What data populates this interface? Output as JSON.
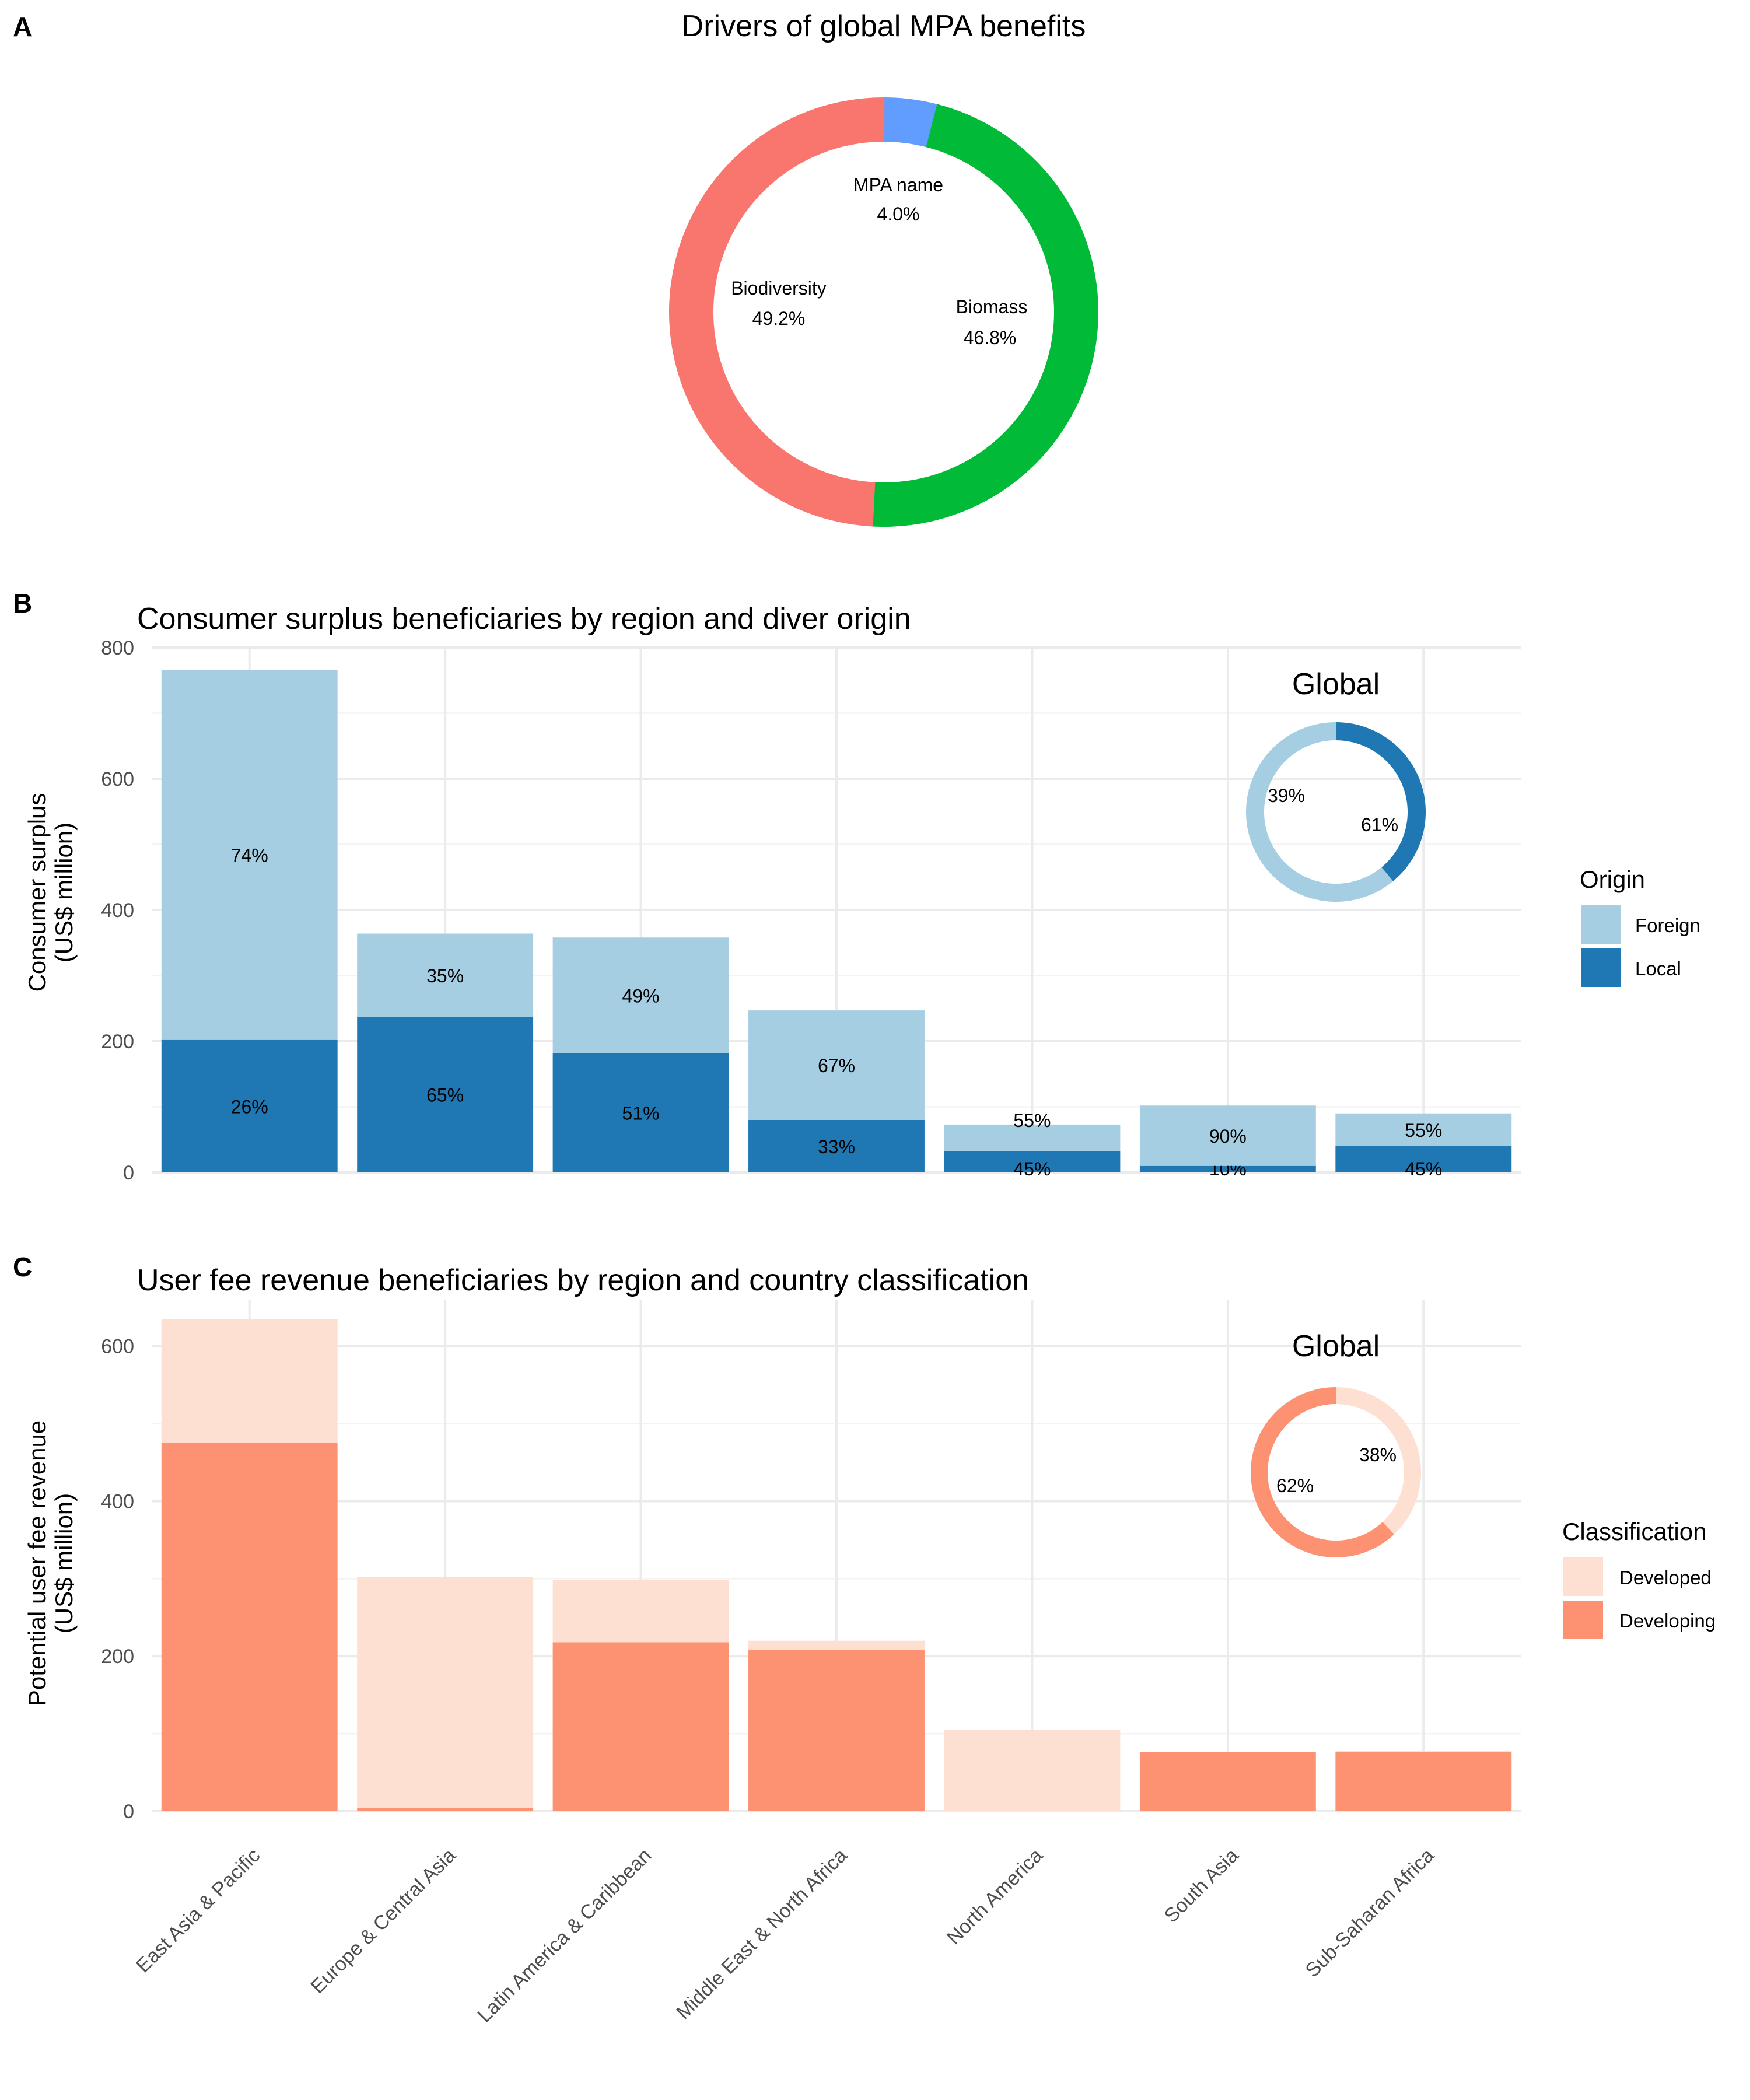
{
  "colors": {
    "mpa": "#619cff",
    "biomass": "#00ba38",
    "biodiversity": "#f8766d",
    "foreign": "#a6cee3",
    "local": "#1f78b4",
    "developed": "#fde0d2",
    "developing": "#fc9272"
  },
  "chart_data": [
    {
      "panel": "A",
      "type": "pie",
      "title": "Drivers of global MPA benefits",
      "slices": [
        {
          "label": "MPA name",
          "value": 4.0,
          "text": "4.0%",
          "color_key": "mpa"
        },
        {
          "label": "Biomass",
          "value": 46.8,
          "text": "46.8%",
          "color_key": "biomass"
        },
        {
          "label": "Biodiversity",
          "value": 49.2,
          "text": "49.2%",
          "color_key": "biodiversity"
        }
      ]
    },
    {
      "panel": "B",
      "type": "bar",
      "stacked": true,
      "title": "Consumer surplus beneficiaries by region and diver origin",
      "ylabel": [
        "Consumer surplus",
        "(US$ million)"
      ],
      "ylim": [
        0,
        800
      ],
      "yticks": [
        0,
        200,
        400,
        600,
        800
      ],
      "categories": [
        "East Asia & Pacific",
        "Europe & Central Asia",
        "Latin America & Caribbean",
        "Middle East & North Africa",
        "North America",
        "South Asia",
        "Sub-Saharan Africa"
      ],
      "series": [
        {
          "name": "Local",
          "color_key": "local",
          "values": [
            202,
            237,
            182,
            80,
            33,
            10,
            40
          ],
          "labels": [
            "26%",
            "65%",
            "51%",
            "33%",
            "45%",
            "10%",
            "45%"
          ]
        },
        {
          "name": "Foreign",
          "color_key": "foreign",
          "values": [
            564,
            127,
            176,
            167,
            40,
            92,
            50
          ],
          "labels": [
            "74%",
            "35%",
            "49%",
            "67%",
            "55%",
            "90%",
            "55%"
          ]
        }
      ],
      "legend": {
        "title": "Origin",
        "items": [
          "Foreign",
          "Local"
        ],
        "placement": "right"
      },
      "inset": {
        "title": "Global",
        "type": "pie",
        "slices": [
          {
            "value": 39,
            "text": "39%",
            "color_key": "local"
          },
          {
            "value": 61,
            "text": "61%",
            "color_key": "foreign"
          }
        ]
      }
    },
    {
      "panel": "C",
      "type": "bar",
      "stacked": true,
      "title": "User fee revenue beneficiaries by region and country classification",
      "ylabel": [
        "Potential user fee revenue",
        "(US$ million)"
      ],
      "ylim": [
        0,
        660
      ],
      "yticks": [
        0,
        200,
        400,
        600
      ],
      "categories": [
        "East Asia & Pacific",
        "Europe & Central Asia",
        "Latin America & Caribbean",
        "Middle East & North Africa",
        "North America",
        "South Asia",
        "Sub-Saharan Africa"
      ],
      "series": [
        {
          "name": "Developing",
          "color_key": "developing",
          "values": [
            475,
            4,
            218,
            208,
            0,
            76,
            76
          ]
        },
        {
          "name": "Developed",
          "color_key": "developed",
          "values": [
            160,
            298,
            80,
            12,
            105,
            0,
            2
          ]
        }
      ],
      "legend": {
        "title": "Classification",
        "items": [
          "Developed",
          "Developing"
        ],
        "placement": "right"
      },
      "inset": {
        "title": "Global",
        "type": "pie",
        "slices": [
          {
            "value": 38,
            "text": "38%",
            "color_key": "developed"
          },
          {
            "value": 62,
            "text": "62%",
            "color_key": "developing"
          }
        ]
      }
    }
  ]
}
